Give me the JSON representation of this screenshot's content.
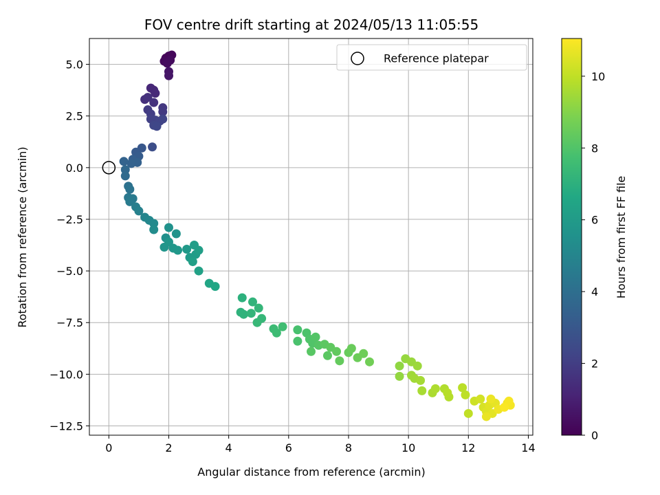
{
  "chart_data": {
    "type": "scatter",
    "title": "FOV centre drift starting at 2024/05/13 11:05:55",
    "xlabel": "Angular distance from reference (arcmin)",
    "ylabel": "Rotation from reference (arcmin)",
    "xlim": [
      -0.65,
      14.15
    ],
    "ylim": [
      -12.95,
      6.25
    ],
    "x_ticks": [
      0,
      2,
      4,
      6,
      8,
      10,
      12,
      14
    ],
    "y_ticks": [
      5.0,
      2.5,
      0.0,
      -2.5,
      -5.0,
      -7.5,
      -10.0,
      -12.5
    ],
    "x_tick_labels": [
      "0",
      "2",
      "4",
      "6",
      "8",
      "10",
      "12",
      "14"
    ],
    "y_tick_labels": [
      "5.0",
      "2.5",
      "0.0",
      "−2.5",
      "−5.0",
      "−7.5",
      "−10.0",
      "−12.5"
    ],
    "grid": true,
    "colormap": "viridis",
    "colorbar": {
      "label": "Hours from first FF file",
      "range": [
        0,
        11.05
      ],
      "ticks": [
        0,
        2,
        4,
        6,
        8,
        10
      ],
      "tick_labels": [
        "0",
        "2",
        "4",
        "6",
        "8",
        "10"
      ]
    },
    "legend": {
      "position": "upper right",
      "entries": [
        {
          "label": "Reference platepar",
          "marker": "open-circle"
        }
      ]
    },
    "reference_point": {
      "x": 0,
      "y": 0
    },
    "points": [
      {
        "x": 2.0,
        "y": 5.4,
        "t": 0.1
      },
      {
        "x": 1.9,
        "y": 5.3,
        "t": 0.15
      },
      {
        "x": 2.1,
        "y": 5.45,
        "t": 0.2
      },
      {
        "x": 1.85,
        "y": 5.15,
        "t": 0.25
      },
      {
        "x": 2.05,
        "y": 5.2,
        "t": 0.3
      },
      {
        "x": 1.95,
        "y": 5.05,
        "t": 0.35
      },
      {
        "x": 2.0,
        "y": 4.65,
        "t": 0.6
      },
      {
        "x": 2.0,
        "y": 4.45,
        "t": 0.65
      },
      {
        "x": 1.4,
        "y": 3.85,
        "t": 1.2
      },
      {
        "x": 1.5,
        "y": 3.75,
        "t": 1.25
      },
      {
        "x": 1.55,
        "y": 3.6,
        "t": 1.3
      },
      {
        "x": 1.2,
        "y": 3.3,
        "t": 1.5
      },
      {
        "x": 1.3,
        "y": 3.4,
        "t": 1.55
      },
      {
        "x": 1.5,
        "y": 3.15,
        "t": 1.6
      },
      {
        "x": 1.8,
        "y": 2.9,
        "t": 1.8
      },
      {
        "x": 1.8,
        "y": 2.7,
        "t": 1.85
      },
      {
        "x": 1.3,
        "y": 2.8,
        "t": 1.9
      },
      {
        "x": 1.4,
        "y": 2.6,
        "t": 2.0
      },
      {
        "x": 1.4,
        "y": 2.35,
        "t": 2.1
      },
      {
        "x": 1.55,
        "y": 2.3,
        "t": 2.15
      },
      {
        "x": 1.7,
        "y": 2.25,
        "t": 2.2
      },
      {
        "x": 1.8,
        "y": 2.35,
        "t": 2.25
      },
      {
        "x": 1.5,
        "y": 2.05,
        "t": 2.3
      },
      {
        "x": 1.6,
        "y": 2.0,
        "t": 2.35
      },
      {
        "x": 1.45,
        "y": 1.0,
        "t": 2.6
      },
      {
        "x": 1.1,
        "y": 0.95,
        "t": 3.0
      },
      {
        "x": 0.9,
        "y": 0.75,
        "t": 3.1
      },
      {
        "x": 1.0,
        "y": 0.55,
        "t": 3.2
      },
      {
        "x": 0.8,
        "y": 0.4,
        "t": 3.3
      },
      {
        "x": 0.95,
        "y": 0.25,
        "t": 3.4
      },
      {
        "x": 0.75,
        "y": 0.2,
        "t": 3.45
      },
      {
        "x": 0.5,
        "y": 0.3,
        "t": 3.5
      },
      {
        "x": 0.55,
        "y": -0.1,
        "t": 3.7
      },
      {
        "x": 0.55,
        "y": -0.4,
        "t": 3.8
      },
      {
        "x": 0.65,
        "y": -0.9,
        "t": 4.1
      },
      {
        "x": 0.7,
        "y": -1.05,
        "t": 4.2
      },
      {
        "x": 0.65,
        "y": -1.45,
        "t": 4.4
      },
      {
        "x": 0.8,
        "y": -1.5,
        "t": 4.5
      },
      {
        "x": 0.7,
        "y": -1.65,
        "t": 4.55
      },
      {
        "x": 0.9,
        "y": -1.9,
        "t": 4.7
      },
      {
        "x": 1.0,
        "y": -2.1,
        "t": 4.8
      },
      {
        "x": 1.2,
        "y": -2.4,
        "t": 5.0
      },
      {
        "x": 1.35,
        "y": -2.55,
        "t": 5.1
      },
      {
        "x": 1.5,
        "y": -2.7,
        "t": 5.2
      },
      {
        "x": 1.5,
        "y": -3.0,
        "t": 5.3
      },
      {
        "x": 1.9,
        "y": -3.4,
        "t": 5.5
      },
      {
        "x": 2.0,
        "y": -2.9,
        "t": 5.55
      },
      {
        "x": 2.25,
        "y": -3.2,
        "t": 5.6
      },
      {
        "x": 1.85,
        "y": -3.85,
        "t": 5.7
      },
      {
        "x": 2.0,
        "y": -3.6,
        "t": 5.75
      },
      {
        "x": 2.15,
        "y": -3.9,
        "t": 5.8
      },
      {
        "x": 2.3,
        "y": -4.0,
        "t": 5.85
      },
      {
        "x": 2.6,
        "y": -3.95,
        "t": 5.9
      },
      {
        "x": 2.7,
        "y": -4.35,
        "t": 6.0
      },
      {
        "x": 2.9,
        "y": -4.2,
        "t": 6.05
      },
      {
        "x": 2.85,
        "y": -3.75,
        "t": 6.1
      },
      {
        "x": 3.0,
        "y": -4.0,
        "t": 6.15
      },
      {
        "x": 2.8,
        "y": -4.55,
        "t": 6.2
      },
      {
        "x": 3.0,
        "y": -5.0,
        "t": 6.3
      },
      {
        "x": 3.35,
        "y": -5.6,
        "t": 6.5
      },
      {
        "x": 3.55,
        "y": -5.75,
        "t": 6.55
      },
      {
        "x": 4.45,
        "y": -6.3,
        "t": 7.0
      },
      {
        "x": 4.4,
        "y": -7.0,
        "t": 7.05
      },
      {
        "x": 4.5,
        "y": -7.1,
        "t": 7.1
      },
      {
        "x": 4.8,
        "y": -6.5,
        "t": 7.15
      },
      {
        "x": 4.75,
        "y": -7.05,
        "t": 7.2
      },
      {
        "x": 5.0,
        "y": -6.8,
        "t": 7.25
      },
      {
        "x": 5.1,
        "y": -7.3,
        "t": 7.3
      },
      {
        "x": 4.95,
        "y": -7.5,
        "t": 7.35
      },
      {
        "x": 5.5,
        "y": -7.8,
        "t": 7.5
      },
      {
        "x": 5.6,
        "y": -8.0,
        "t": 7.55
      },
      {
        "x": 5.8,
        "y": -7.7,
        "t": 7.6
      },
      {
        "x": 6.3,
        "y": -7.85,
        "t": 7.8
      },
      {
        "x": 6.3,
        "y": -8.4,
        "t": 7.85
      },
      {
        "x": 6.6,
        "y": -8.0,
        "t": 7.9
      },
      {
        "x": 6.7,
        "y": -8.3,
        "t": 7.95
      },
      {
        "x": 6.8,
        "y": -8.5,
        "t": 8.0
      },
      {
        "x": 6.9,
        "y": -8.2,
        "t": 8.05
      },
      {
        "x": 7.0,
        "y": -8.6,
        "t": 8.1
      },
      {
        "x": 6.75,
        "y": -8.9,
        "t": 8.15
      },
      {
        "x": 7.3,
        "y": -9.1,
        "t": 8.2
      },
      {
        "x": 7.2,
        "y": -8.55,
        "t": 8.25
      },
      {
        "x": 7.4,
        "y": -8.7,
        "t": 8.3
      },
      {
        "x": 7.6,
        "y": -8.9,
        "t": 8.35
      },
      {
        "x": 7.7,
        "y": -9.35,
        "t": 8.4
      },
      {
        "x": 8.0,
        "y": -8.95,
        "t": 8.45
      },
      {
        "x": 8.1,
        "y": -8.75,
        "t": 8.5
      },
      {
        "x": 8.3,
        "y": -9.2,
        "t": 8.55
      },
      {
        "x": 8.5,
        "y": -9.0,
        "t": 8.6
      },
      {
        "x": 8.7,
        "y": -9.4,
        "t": 8.65
      },
      {
        "x": 9.7,
        "y": -9.6,
        "t": 9.2
      },
      {
        "x": 9.7,
        "y": -10.1,
        "t": 9.25
      },
      {
        "x": 9.9,
        "y": -9.25,
        "t": 9.3
      },
      {
        "x": 10.1,
        "y": -9.4,
        "t": 9.35
      },
      {
        "x": 10.3,
        "y": -9.6,
        "t": 9.4
      },
      {
        "x": 10.1,
        "y": -10.05,
        "t": 9.45
      },
      {
        "x": 10.2,
        "y": -10.2,
        "t": 9.5
      },
      {
        "x": 10.4,
        "y": -10.3,
        "t": 9.55
      },
      {
        "x": 10.45,
        "y": -10.8,
        "t": 9.6
      },
      {
        "x": 10.8,
        "y": -10.9,
        "t": 9.65
      },
      {
        "x": 10.9,
        "y": -10.7,
        "t": 9.7
      },
      {
        "x": 11.2,
        "y": -10.7,
        "t": 9.75
      },
      {
        "x": 11.35,
        "y": -11.1,
        "t": 9.8
      },
      {
        "x": 11.3,
        "y": -10.9,
        "t": 9.85
      },
      {
        "x": 11.8,
        "y": -10.65,
        "t": 9.9
      },
      {
        "x": 11.9,
        "y": -11.0,
        "t": 9.95
      },
      {
        "x": 12.0,
        "y": -11.9,
        "t": 10.0
      },
      {
        "x": 12.2,
        "y": -11.3,
        "t": 10.2
      },
      {
        "x": 12.4,
        "y": -11.2,
        "t": 10.3
      },
      {
        "x": 12.5,
        "y": -11.6,
        "t": 10.4
      },
      {
        "x": 12.6,
        "y": -11.8,
        "t": 10.5
      },
      {
        "x": 12.7,
        "y": -11.5,
        "t": 10.55
      },
      {
        "x": 12.8,
        "y": -11.9,
        "t": 10.6
      },
      {
        "x": 12.9,
        "y": -11.4,
        "t": 10.65
      },
      {
        "x": 12.6,
        "y": -12.05,
        "t": 10.7
      },
      {
        "x": 12.75,
        "y": -11.2,
        "t": 10.75
      },
      {
        "x": 13.0,
        "y": -11.7,
        "t": 10.8
      },
      {
        "x": 13.3,
        "y": -11.4,
        "t": 10.85
      },
      {
        "x": 13.4,
        "y": -11.5,
        "t": 10.9
      },
      {
        "x": 13.35,
        "y": -11.3,
        "t": 10.95
      },
      {
        "x": 13.2,
        "y": -11.6,
        "t": 11.0
      }
    ]
  }
}
